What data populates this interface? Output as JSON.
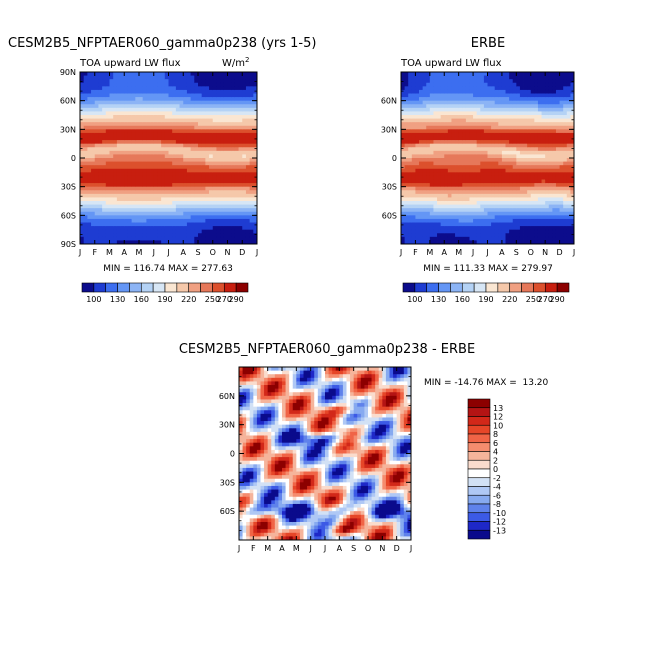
{
  "page": {
    "top_left_title": "CESM2B5_NFPTAER060_gamma0p238 (yrs 1-5)",
    "top_right_title": "ERBE",
    "bottom_title": "CESM2B5_NFPTAER060_gamma0p238 - ERBE"
  },
  "chart_data": [
    {
      "type": "heatmap",
      "title": "CESM2B5_NFPTAER060_gamma0p238 (yrs 1-5)",
      "subtitle": "TOA upward LW flux",
      "units_label": "W/m",
      "units_superscript": "2",
      "x_tick_labels": [
        "J",
        "F",
        "M",
        "A",
        "M",
        "J",
        "J",
        "A",
        "S",
        "O",
        "N",
        "D",
        "J"
      ],
      "y_tick_labels": [
        "90N",
        "60N",
        "30N",
        "0",
        "30S",
        "60S",
        "90S"
      ],
      "y_tick_values": [
        90,
        60,
        30,
        0,
        -30,
        -60,
        -90
      ],
      "xlim": [
        0,
        12
      ],
      "ylim": [
        -90,
        90
      ],
      "stats": "MIN = 116.74 MAX = 277.63",
      "min": 116.74,
      "max": 277.63,
      "colorbar_labels": [
        "100",
        "130",
        "160",
        "190",
        "220",
        "250",
        "270",
        "290"
      ],
      "field": "model"
    },
    {
      "type": "heatmap",
      "title": "ERBE",
      "subtitle": "TOA upward LW flux",
      "x_tick_labels": [
        "J",
        "F",
        "M",
        "A",
        "M",
        "J",
        "J",
        "A",
        "S",
        "O",
        "N",
        "D",
        "J"
      ],
      "y_tick_labels": [
        "60N",
        "30N",
        "0",
        "30S",
        "60S"
      ],
      "y_tick_values": [
        60,
        30,
        0,
        -30,
        -60
      ],
      "xlim": [
        0,
        12
      ],
      "ylim": [
        -90,
        90
      ],
      "stats": "MIN = 111.33 MAX = 279.97",
      "min": 111.33,
      "max": 279.97,
      "colorbar_labels": [
        "100",
        "130",
        "160",
        "190",
        "220",
        "250",
        "270",
        "290"
      ],
      "field": "obs"
    },
    {
      "type": "heatmap",
      "title": "CESM2B5_NFPTAER060_gamma0p238 - ERBE",
      "x_tick_labels": [
        "J",
        "F",
        "M",
        "A",
        "M",
        "J",
        "J",
        "A",
        "S",
        "O",
        "N",
        "D",
        "J"
      ],
      "y_tick_labels": [
        "60N",
        "30N",
        "0",
        "30S",
        "60S"
      ],
      "y_tick_values": [
        60,
        30,
        0,
        -30,
        -60
      ],
      "xlim": [
        0,
        12
      ],
      "ylim": [
        -90,
        90
      ],
      "stats": "MIN = -14.76 MAX =  13.20",
      "min": -14.76,
      "max": 13.2,
      "colorbar_labels": [
        "13",
        "12",
        "10",
        "8",
        "6",
        "4",
        "2",
        "0",
        "-2",
        "-4",
        "-6",
        "-8",
        "-10",
        "-12",
        "-13"
      ],
      "field": "diff"
    }
  ],
  "palettes": {
    "absolute": [
      "#0c0c8c",
      "#1e3cd2",
      "#3c6ef0",
      "#6496f5",
      "#8cb4f5",
      "#b4d2f5",
      "#d7e6f5",
      "#fae6d2",
      "#f5c8aa",
      "#f0a082",
      "#e6785a",
      "#dc502d",
      "#c81e0f",
      "#8c0000"
    ],
    "difference": [
      "#8c0000",
      "#b41414",
      "#d22819",
      "#e64628",
      "#f06446",
      "#f58c6e",
      "#f5b49b",
      "#fadccd",
      "#ffffff",
      "#d2e1f5",
      "#afc8f5",
      "#87aaf0",
      "#5f82eb",
      "#3c5ae6",
      "#1e28c8",
      "#0a0a8c"
    ]
  }
}
